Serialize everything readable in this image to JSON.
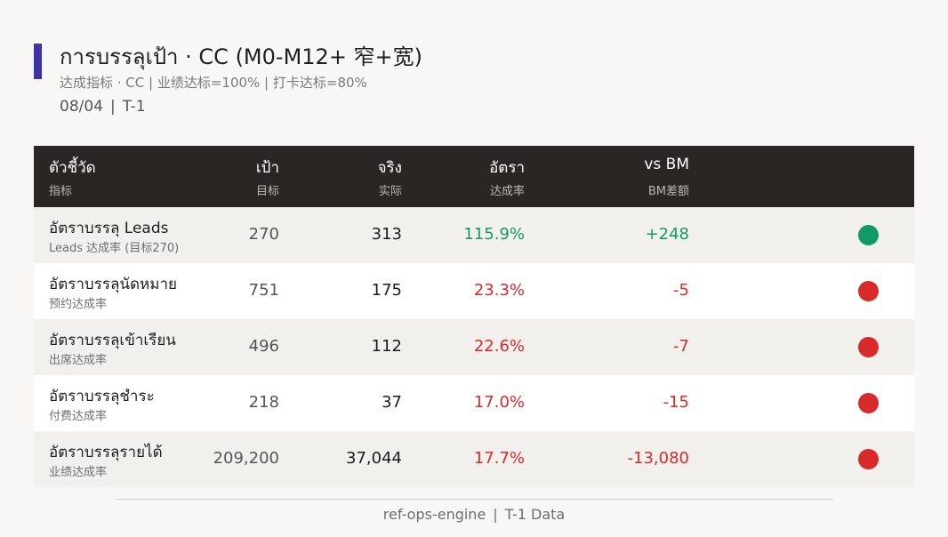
{
  "header": {
    "title": "การบรรลุเป้า · CC (M0-M12+ 窄+宽)",
    "subtitle": "达成指标 · CC | 业绩达标=100% | 打卡达标=80%",
    "date": "08/04",
    "date_separator": "|",
    "period": "T-1",
    "accent_color": "#3b33a6"
  },
  "table": {
    "columns": [
      {
        "label": "ตัวชี้วัด",
        "sub": "指标"
      },
      {
        "label": "เป้า",
        "sub": "目标"
      },
      {
        "label": "จริง",
        "sub": "实际"
      },
      {
        "label": "อัตรา",
        "sub": "达成率"
      },
      {
        "label": "vs BM",
        "sub": "BM差额"
      }
    ],
    "rows": [
      {
        "name": "อัตราบรรลุ Leads",
        "sub": "Leads 达成率 (目标270)",
        "target": "270",
        "actual": "313",
        "rate": "115.9%",
        "bm": "+248",
        "status": "green"
      },
      {
        "name": "อัตราบรรลุนัดหมาย",
        "sub": "预约达成率",
        "target": "751",
        "actual": "175",
        "rate": "23.3%",
        "bm": "-5",
        "status": "red"
      },
      {
        "name": "อัตราบรรลุเข้าเรียน",
        "sub": "出席达成率",
        "target": "496",
        "actual": "112",
        "rate": "22.6%",
        "bm": "-7",
        "status": "red"
      },
      {
        "name": "อัตราบรรลุชำระ",
        "sub": "付费达成率",
        "target": "218",
        "actual": "37",
        "rate": "17.0%",
        "bm": "-15",
        "status": "red"
      },
      {
        "name": "อัตราบรรลุรายได้",
        "sub": "业绩达成率",
        "target": "209,200",
        "actual": "37,044",
        "rate": "17.7%",
        "bm": "-13,080",
        "status": "red"
      }
    ],
    "status_colors": {
      "green": "#109a68",
      "red": "#d92a2a"
    }
  },
  "footer": {
    "source": "ref-ops-engine",
    "separator": "|",
    "note": "T-1 Data"
  }
}
